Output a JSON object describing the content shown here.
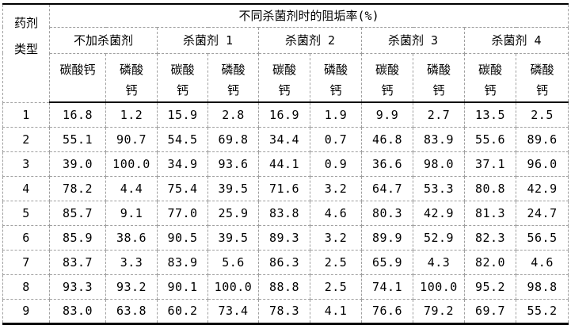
{
  "table": {
    "corner_header": "药剂\n类型",
    "title": "不同杀菌剂时的阻垢率(%)",
    "group_headers": [
      "不加杀菌剂",
      "杀菌剂 1",
      "杀菌剂 2",
      "杀菌剂 3",
      "杀菌剂 4"
    ],
    "sub_headers": [
      "碳酸钙",
      "磷酸\n钙",
      "碳酸\n钙",
      "磷酸\n钙",
      "碳酸\n钙",
      "磷酸\n钙",
      "碳酸\n钙",
      "磷酸\n钙",
      "碳酸\n钙",
      "磷酸\n钙"
    ],
    "rows": [
      {
        "label": "1",
        "values": [
          "16.8",
          "1.2",
          "15.9",
          "2.8",
          "16.9",
          "1.9",
          "9.9",
          "2.7",
          "13.5",
          "2.5"
        ]
      },
      {
        "label": "2",
        "values": [
          "55.1",
          "90.7",
          "54.5",
          "69.8",
          "34.4",
          "0.7",
          "46.8",
          "83.9",
          "55.6",
          "89.6"
        ]
      },
      {
        "label": "3",
        "values": [
          "39.0",
          "100.0",
          "34.9",
          "93.6",
          "44.1",
          "0.9",
          "36.6",
          "98.0",
          "37.1",
          "96.0"
        ]
      },
      {
        "label": "4",
        "values": [
          "78.2",
          "4.4",
          "75.4",
          "39.5",
          "71.6",
          "3.2",
          "64.7",
          "53.3",
          "80.8",
          "42.9"
        ]
      },
      {
        "label": "5",
        "values": [
          "85.7",
          "9.1",
          "77.0",
          "25.9",
          "83.8",
          "4.6",
          "80.3",
          "42.9",
          "81.3",
          "24.7"
        ]
      },
      {
        "label": "6",
        "values": [
          "85.9",
          "38.6",
          "90.5",
          "39.5",
          "89.3",
          "3.2",
          "89.9",
          "52.9",
          "82.3",
          "56.5"
        ]
      },
      {
        "label": "7",
        "values": [
          "83.7",
          "3.3",
          "83.9",
          "5.6",
          "86.3",
          "2.5",
          "65.9",
          "4.3",
          "82.0",
          "4.6"
        ]
      },
      {
        "label": "8",
        "values": [
          "93.3",
          "93.2",
          "90.1",
          "100.0",
          "88.8",
          "2.5",
          "74.1",
          "100.0",
          "95.2",
          "98.8"
        ]
      },
      {
        "label": "9",
        "values": [
          "83.0",
          "63.8",
          "60.2",
          "73.4",
          "78.3",
          "4.1",
          "76.6",
          "79.2",
          "69.7",
          "55.2"
        ]
      }
    ]
  },
  "colors": {
    "text": "#000000",
    "background": "#ffffff",
    "solid_border": "#000000",
    "dashed_border": "#a0a0a0"
  }
}
